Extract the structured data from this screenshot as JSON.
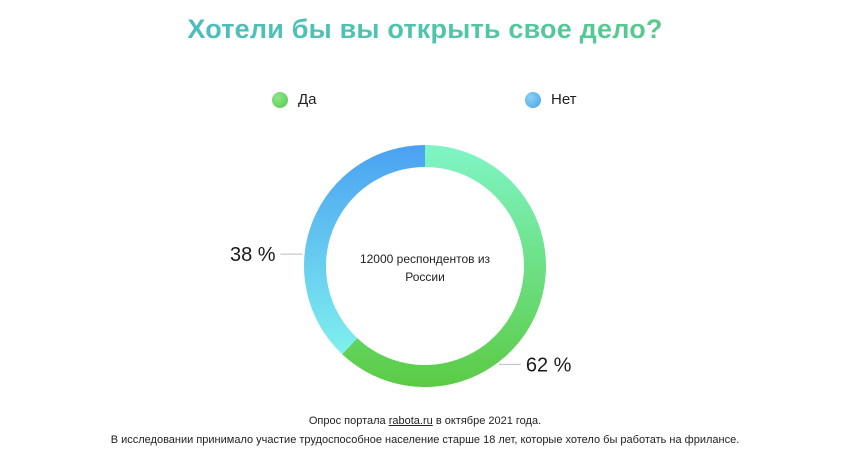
{
  "title": "Хотели бы вы открыть свое дело?",
  "legend": [
    {
      "label": "Да",
      "color": "#5fcf55"
    },
    {
      "label": "Нет",
      "color": "#4aa6ee"
    }
  ],
  "center_text": [
    "12000 респондентов из",
    "России"
  ],
  "footer": {
    "line1_prefix": "Опрос портала ",
    "line1_link": "rabota.ru",
    "line1_suffix": " в октябре 2021 года.",
    "line2": "В исследовании принимало участие трудоспособное население старше 18 лет, которые хотело бы работать на фрилансе."
  },
  "chart_data": {
    "type": "pie",
    "title": "Хотели бы вы открыть свое дело?",
    "donut": true,
    "categories": [
      "Да",
      "Нет"
    ],
    "values": [
      62,
      38
    ],
    "value_labels": [
      "62 %",
      "38 %"
    ],
    "colors": {
      "Да": [
        "#7ff5c6",
        "#5bcb45"
      ],
      "Нет": [
        "#7ff0ee",
        "#4aa1f2"
      ]
    },
    "legend_position": "top"
  }
}
